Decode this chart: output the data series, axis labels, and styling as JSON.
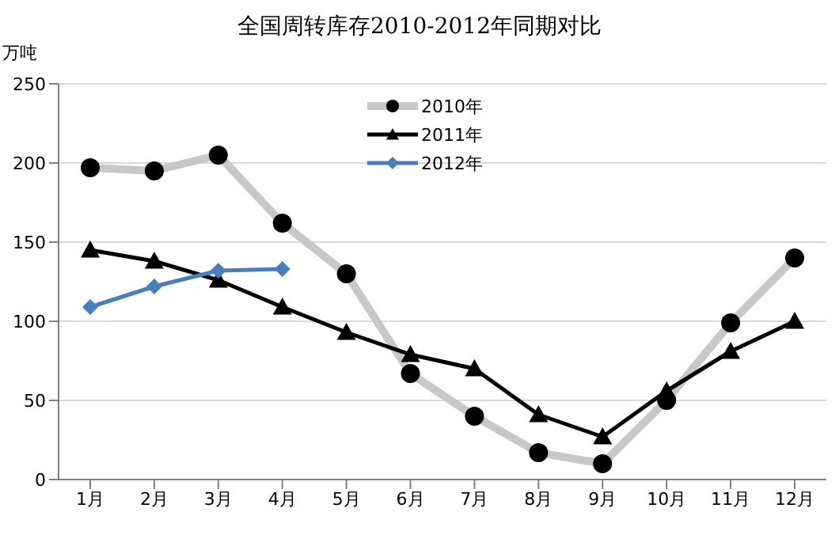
{
  "chart_data": {
    "type": "line",
    "title": "全国周转库存2010-2012年同期对比",
    "ylabel": "万吨",
    "categories": [
      "1月",
      "2月",
      "3月",
      "4月",
      "5月",
      "6月",
      "7月",
      "8月",
      "9月",
      "10月",
      "11月",
      "12月"
    ],
    "series": [
      {
        "name": "2010年",
        "color": "#c8c8c8",
        "marker": "circle",
        "values": [
          197,
          195,
          205,
          162,
          130,
          67,
          40,
          17,
          10,
          50,
          99,
          140
        ]
      },
      {
        "name": "2011年",
        "color": "#000000",
        "marker": "triangle",
        "values": [
          145,
          138,
          126,
          109,
          93,
          79,
          70,
          41,
          27,
          56,
          81,
          100
        ]
      },
      {
        "name": "2012年",
        "color": "#4a7ebb",
        "marker": "diamond",
        "values": [
          109,
          122,
          132,
          133,
          null,
          null,
          null,
          null,
          null,
          null,
          null,
          null
        ]
      }
    ],
    "ylim": [
      0,
      250
    ],
    "yticks": [
      0,
      50,
      100,
      150,
      200,
      250
    ],
    "grid": "y",
    "legend": "top"
  }
}
